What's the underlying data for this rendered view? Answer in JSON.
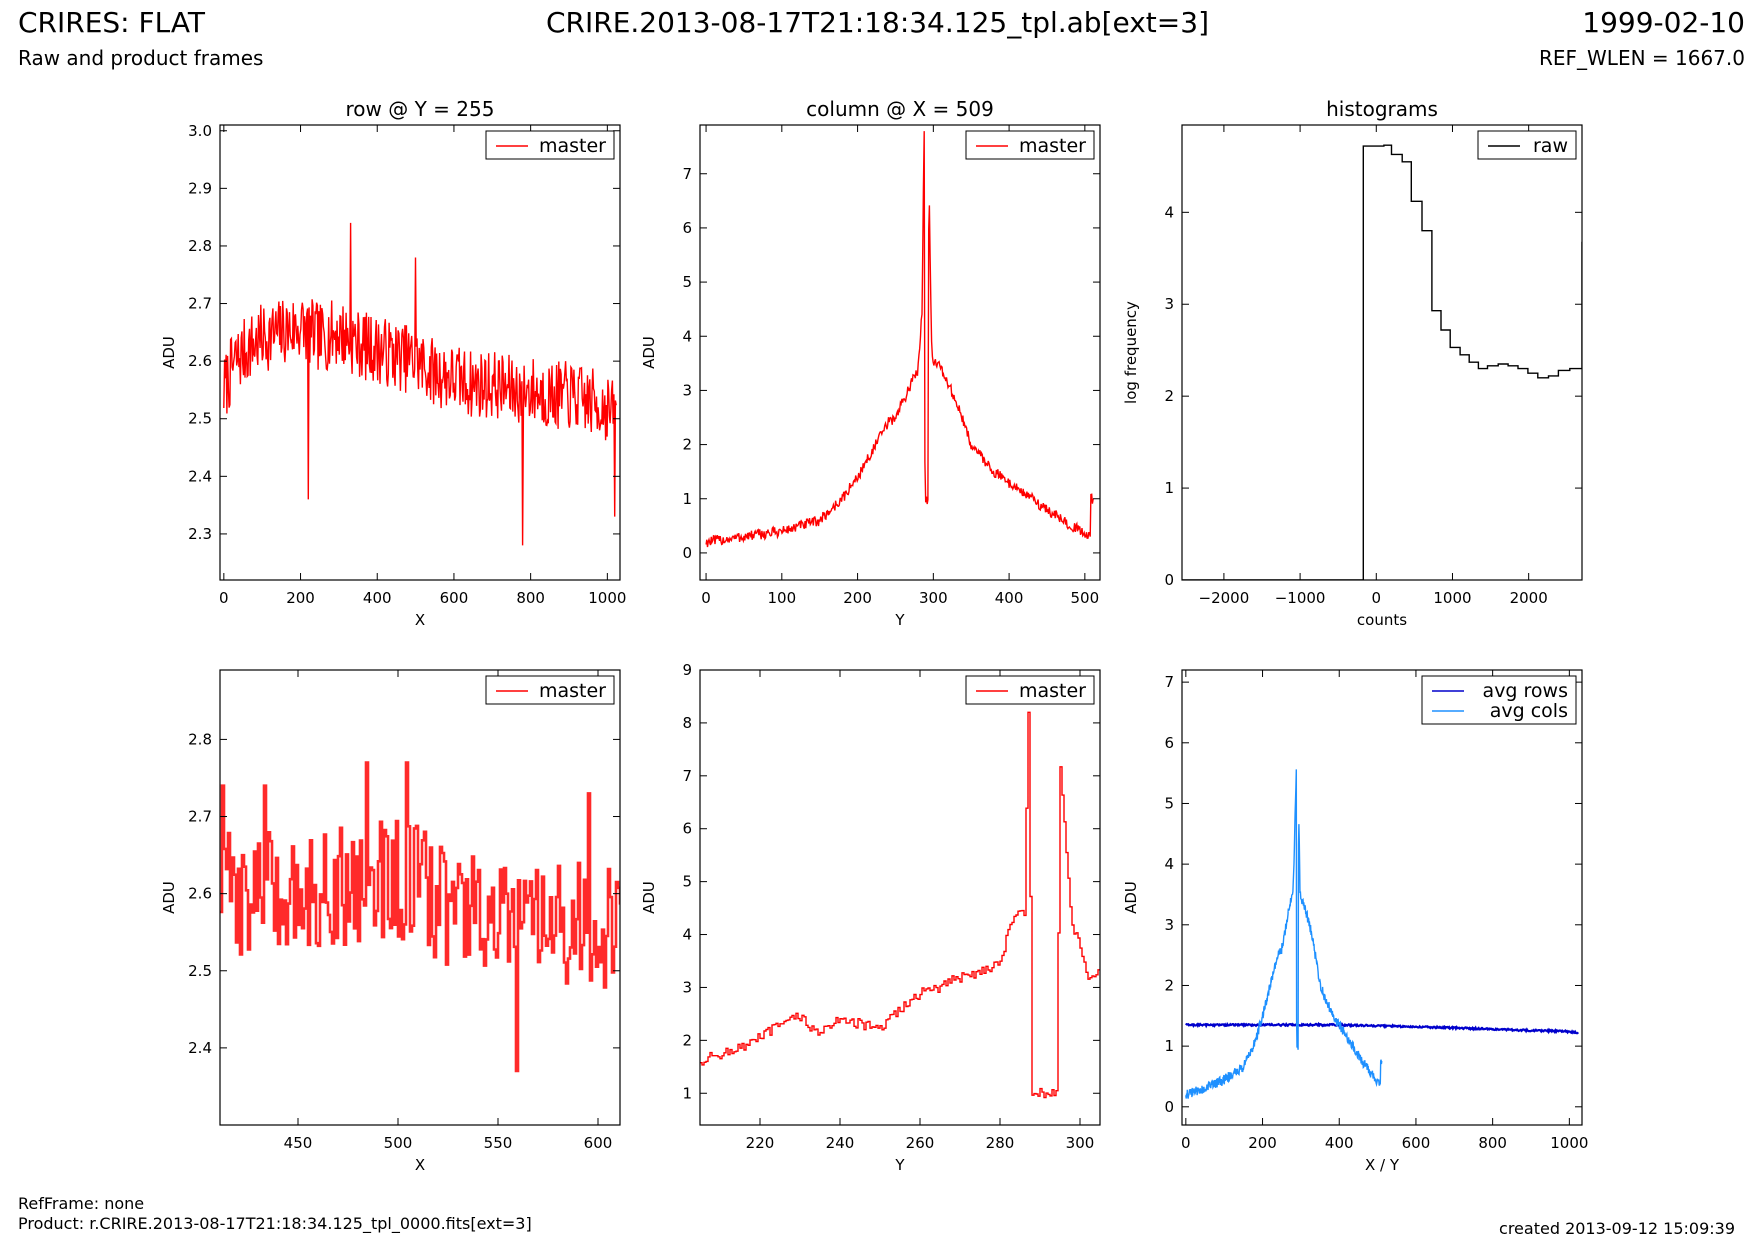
{
  "header": {
    "title_left": "CRIRES: FLAT",
    "subtitle_left": "Raw and product frames",
    "title_center": "CRIRE.2013-08-17T21:18:34.125_tpl.ab[ext=3]",
    "title_right": "1999-02-10",
    "subtitle_right": "REF_WLEN = 1667.0"
  },
  "footer": {
    "ref_frame": "RefFrame: none",
    "product": "Product: r.CRIRE.2013-08-17T21:18:34.125_tpl_0000.fits[ext=3]",
    "created": "created 2013-09-12 15:09:39"
  },
  "chart_data": [
    {
      "id": "p1",
      "type": "line",
      "title": "row @ Y = 255",
      "xlabel": "X",
      "ylabel": "ADU",
      "xlim": [
        -10,
        1033
      ],
      "ylim": [
        2.22,
        3.01
      ],
      "xticks": [
        0,
        200,
        400,
        600,
        800,
        1000
      ],
      "yticks": [
        2.3,
        2.4,
        2.5,
        2.6,
        2.7,
        2.8,
        2.9,
        3.0
      ],
      "xtick_labels": [
        "0",
        "200",
        "400",
        "600",
        "800",
        "1000"
      ],
      "ytick_labels": [
        "2.3",
        "2.4",
        "2.5",
        "2.6",
        "2.7",
        "2.8",
        "2.9",
        "3.0"
      ],
      "legend": {
        "position": "top-right",
        "entries": [
          {
            "label": "master",
            "color": "#ff0000"
          }
        ]
      },
      "series": [
        {
          "name": "master",
          "color": "#ff0000",
          "x": [
            0,
            30,
            60,
            100,
            150,
            200,
            250,
            300,
            350,
            400,
            450,
            500,
            550,
            600,
            650,
            700,
            750,
            800,
            850,
            900,
            950,
            1000,
            1023
          ],
          "y": [
            2.55,
            2.6,
            2.62,
            2.64,
            2.65,
            2.66,
            2.64,
            2.65,
            2.63,
            2.62,
            2.61,
            2.6,
            2.58,
            2.57,
            2.56,
            2.56,
            2.55,
            2.55,
            2.54,
            2.54,
            2.53,
            2.52,
            2.5
          ],
          "noise": 0.06,
          "spikes": [
            [
              220,
              2.36
            ],
            [
              330,
              2.84
            ],
            [
              500,
              2.78
            ],
            [
              780,
              2.28
            ],
            [
              1020,
              2.33
            ]
          ]
        }
      ]
    },
    {
      "id": "p2",
      "type": "line",
      "title": "column @ X = 509",
      "xlabel": "Y",
      "ylabel": "ADU",
      "xlim": [
        -8,
        520
      ],
      "ylim": [
        -0.5,
        7.9
      ],
      "xticks": [
        0,
        100,
        200,
        300,
        400,
        500
      ],
      "yticks": [
        0,
        1,
        2,
        3,
        4,
        5,
        6,
        7
      ],
      "xtick_labels": [
        "0",
        "100",
        "200",
        "300",
        "400",
        "500"
      ],
      "ytick_labels": [
        "0",
        "1",
        "2",
        "3",
        "4",
        "5",
        "6",
        "7"
      ],
      "legend": {
        "position": "top-right",
        "entries": [
          {
            "label": "master",
            "color": "#ff0000"
          }
        ]
      },
      "series": [
        {
          "name": "master",
          "color": "#ff0000",
          "x": [
            0,
            50,
            100,
            150,
            180,
            200,
            220,
            240,
            250,
            260,
            270,
            280,
            285,
            288,
            289,
            293,
            294,
            298,
            310,
            330,
            350,
            380,
            420,
            460,
            500,
            507,
            508,
            511
          ],
          "y": [
            0.2,
            0.3,
            0.4,
            0.6,
            1.0,
            1.4,
            1.9,
            2.4,
            2.5,
            2.8,
            3.1,
            3.4,
            4.5,
            7.9,
            1.0,
            1.0,
            7.1,
            3.6,
            3.4,
            2.8,
            2.0,
            1.5,
            1.1,
            0.7,
            0.35,
            0.3,
            1.0,
            1.0
          ],
          "noise": 0.1
        }
      ]
    },
    {
      "id": "p3",
      "type": "line",
      "title": "histograms",
      "xlabel": "counts",
      "ylabel": "log frequency",
      "xlim": [
        -2550,
        2700
      ],
      "ylim": [
        0,
        4.95
      ],
      "xticks": [
        -2000,
        -1000,
        0,
        1000,
        2000
      ],
      "yticks": [
        0,
        1,
        2,
        3,
        4
      ],
      "xtick_labels": [
        "−2000",
        "−1000",
        "0",
        "1000",
        "2000"
      ],
      "ytick_labels": [
        "0",
        "1",
        "2",
        "3",
        "4"
      ],
      "legend": {
        "position": "top-right",
        "entries": [
          {
            "label": "raw",
            "color": "#000000"
          }
        ]
      },
      "series": [
        {
          "name": "raw",
          "color": "#000000",
          "step": true,
          "x": [
            -2550,
            -170,
            -170,
            100,
            200,
            340,
            460,
            600,
            730,
            850,
            970,
            1100,
            1220,
            1340,
            1460,
            1600,
            1730,
            1860,
            1990,
            2120,
            2260,
            2390,
            2540,
            2700
          ],
          "y": [
            0,
            0,
            4.72,
            4.73,
            4.63,
            4.55,
            4.12,
            3.8,
            2.93,
            2.72,
            2.53,
            2.45,
            2.37,
            2.3,
            2.33,
            2.35,
            2.33,
            2.3,
            2.25,
            2.2,
            2.22,
            2.28,
            2.3,
            3.68
          ]
        }
      ]
    },
    {
      "id": "p4",
      "type": "line",
      "title": "",
      "xlabel": "X",
      "ylabel": "ADU",
      "xlim": [
        411,
        611
      ],
      "ylim": [
        2.3,
        2.89
      ],
      "xticks": [
        450,
        500,
        550,
        600
      ],
      "yticks": [
        2.4,
        2.5,
        2.6,
        2.7,
        2.8
      ],
      "xtick_labels": [
        "450",
        "500",
        "550",
        "600"
      ],
      "ytick_labels": [
        "2.4",
        "2.5",
        "2.6",
        "2.7",
        "2.8"
      ],
      "legend": {
        "position": "top-right",
        "entries": [
          {
            "label": "master",
            "color": "#ff0000"
          }
        ]
      },
      "series": [
        {
          "name": "master",
          "color": "#ff2a2a",
          "step": true,
          "width": 2.6,
          "x": [
            411,
            440,
            470,
            500,
            530,
            560,
            590,
            611
          ],
          "y": [
            2.6,
            2.6,
            2.61,
            2.62,
            2.58,
            2.55,
            2.56,
            2.55
          ],
          "noise": 0.08,
          "spikes": [
            [
              412,
              2.74
            ],
            [
              433,
              2.74
            ],
            [
              484,
              2.77
            ],
            [
              504,
              2.77
            ],
            [
              559,
              2.37
            ],
            [
              595,
              2.73
            ]
          ]
        }
      ]
    },
    {
      "id": "p5",
      "type": "line",
      "title": "",
      "xlabel": "Y",
      "ylabel": "ADU",
      "xlim": [
        205,
        305
      ],
      "ylim": [
        0.4,
        9.0
      ],
      "xticks": [
        220,
        240,
        260,
        280,
        300
      ],
      "yticks": [
        1,
        2,
        3,
        4,
        5,
        6,
        7,
        8,
        9
      ],
      "xtick_labels": [
        "220",
        "240",
        "260",
        "280",
        "300"
      ],
      "ytick_labels": [
        "1",
        "2",
        "3",
        "4",
        "5",
        "6",
        "7",
        "8",
        "9"
      ],
      "legend": {
        "position": "top-right",
        "entries": [
          {
            "label": "master",
            "color": "#ff0000"
          }
        ]
      },
      "series": [
        {
          "name": "master",
          "color": "#ff0000",
          "step": true,
          "x": [
            205,
            210,
            215,
            220,
            225,
            230,
            235,
            240,
            245,
            250,
            255,
            260,
            265,
            270,
            275,
            280,
            283,
            286,
            287,
            288,
            294,
            295,
            298,
            300,
            302,
            305
          ],
          "y": [
            1.6,
            1.75,
            1.85,
            2.05,
            2.3,
            2.45,
            2.1,
            2.45,
            2.3,
            2.2,
            2.6,
            2.9,
            3.0,
            3.2,
            3.3,
            3.5,
            4.3,
            4.4,
            8.3,
            1.0,
            1.0,
            7.1,
            4.1,
            3.8,
            3.2,
            3.25
          ],
          "noise": 0.1
        }
      ]
    },
    {
      "id": "p6",
      "type": "line",
      "title": "",
      "xlabel": "X / Y",
      "ylabel": "ADU",
      "xlim": [
        -10,
        1033
      ],
      "ylim": [
        -0.3,
        7.2
      ],
      "xticks": [
        0,
        200,
        400,
        600,
        800,
        1000
      ],
      "yticks": [
        0,
        1,
        2,
        3,
        4,
        5,
        6,
        7
      ],
      "xtick_labels": [
        "0",
        "200",
        "400",
        "600",
        "800",
        "1000"
      ],
      "ytick_labels": [
        "0",
        "1",
        "2",
        "3",
        "4",
        "5",
        "6",
        "7"
      ],
      "legend": {
        "position": "top-right",
        "entries": [
          {
            "label": "avg rows",
            "color": "#0000cc"
          },
          {
            "label": "avg cols",
            "color": "#1e90ff"
          }
        ]
      },
      "series": [
        {
          "name": "avg rows",
          "color": "#0000cc",
          "width": 2.2,
          "x": [
            0,
            200,
            400,
            600,
            800,
            1000,
            1023
          ],
          "y": [
            1.35,
            1.35,
            1.35,
            1.32,
            1.28,
            1.24,
            1.22
          ],
          "noise": 0.015
        },
        {
          "name": "avg cols",
          "color": "#1e90ff",
          "x": [
            0,
            50,
            100,
            150,
            180,
            200,
            220,
            240,
            250,
            260,
            270,
            280,
            285,
            288,
            289,
            293,
            294,
            298,
            310,
            330,
            350,
            380,
            420,
            460,
            500,
            507,
            508,
            511
          ],
          "y": [
            0.2,
            0.3,
            0.45,
            0.65,
            1.05,
            1.5,
            2.0,
            2.5,
            2.6,
            2.95,
            3.3,
            3.6,
            4.8,
            5.6,
            1.0,
            1.0,
            5.0,
            3.5,
            3.3,
            2.8,
            2.0,
            1.55,
            1.15,
            0.75,
            0.4,
            0.35,
            0.7,
            0.7
          ],
          "noise": 0.08
        }
      ]
    }
  ]
}
